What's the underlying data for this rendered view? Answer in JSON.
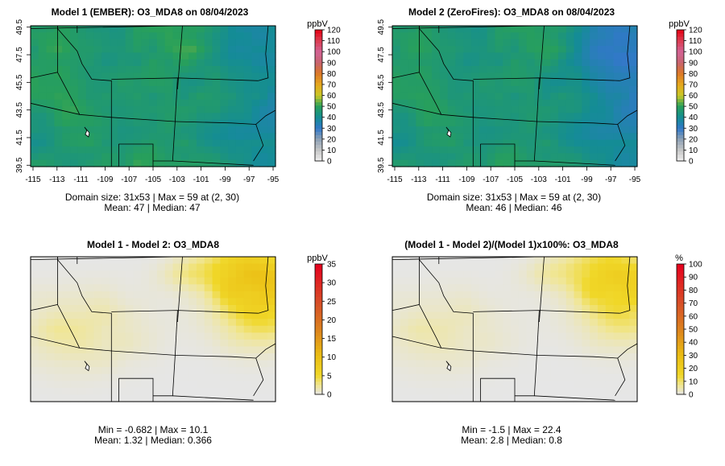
{
  "chart_data": [
    {
      "type": "heatmap",
      "title": "Model 1 (EMBER): O3_MDA8 on 08/04/2023",
      "grid": "31x53",
      "x_ticks": [
        "-115",
        "-113",
        "-111",
        "-109",
        "-107",
        "-105",
        "-103",
        "-101",
        "-99",
        "-97",
        "-95"
      ],
      "y_ticks": [
        "39.5",
        "41.5",
        "43.5",
        "45.5",
        "47.5",
        "49.5"
      ],
      "xlim": [
        -115.2,
        -94.8
      ],
      "ylim": [
        39.4,
        49.6
      ],
      "legend_title": "ppbV",
      "legend_ticks": [
        "0",
        "10",
        "20",
        "30",
        "40",
        "50",
        "60",
        "70",
        "80",
        "90",
        "100",
        "110",
        "120"
      ],
      "legend_range": [
        0,
        120
      ],
      "stats_line1": "Domain size: 31x53 | Max = 59 at (2, 30)",
      "stats_line2": "Mean: 47 |  Median: 47",
      "mean": 47,
      "max": 59
    },
    {
      "type": "heatmap",
      "title": "Model 2 (ZeroFires): O3_MDA8 on 08/04/2023",
      "grid": "31x53",
      "x_ticks": [
        "-115",
        "-113",
        "-111",
        "-109",
        "-107",
        "-105",
        "-103",
        "-101",
        "-99",
        "-97",
        "-95"
      ],
      "y_ticks": [
        "39.5",
        "41.5",
        "43.5",
        "45.5",
        "47.5",
        "49.5"
      ],
      "xlim": [
        -115.2,
        -94.8
      ],
      "ylim": [
        39.4,
        49.6
      ],
      "legend_title": "ppbV",
      "legend_ticks": [
        "0",
        "10",
        "20",
        "30",
        "40",
        "50",
        "60",
        "70",
        "80",
        "90",
        "100",
        "110",
        "120"
      ],
      "legend_range": [
        0,
        120
      ],
      "stats_line1": "Domain size: 31x53 | Max = 59 at (2, 30)",
      "stats_line2": "Mean: 46 |  Median: 46",
      "mean": 46,
      "max": 59
    },
    {
      "type": "heatmap",
      "title": "Model 1 - Model 2: O3_MDA8",
      "legend_title": "ppbV",
      "legend_ticks": [
        "0",
        "5",
        "10",
        "15",
        "20",
        "25",
        "30",
        "35"
      ],
      "legend_range": [
        0,
        35
      ],
      "stats_line1": "Min = -0.682 | Max = 10.1",
      "stats_line2": "Mean: 1.32 |  Median: 0.366",
      "min": -0.682,
      "max": 10.1
    },
    {
      "type": "heatmap",
      "title": "(Model 1 - Model 2)/(Model 1)x100%: O3_MDA8",
      "legend_title": "%",
      "legend_ticks": [
        "0",
        "10",
        "20",
        "30",
        "40",
        "50",
        "60",
        "70",
        "80",
        "90",
        "100"
      ],
      "legend_range": [
        0,
        100
      ],
      "stats_line1": "Min = -1.5 | Max = 22.4",
      "stats_line2": "Mean: 2.8 |  Median: 0.8",
      "min": -1.5,
      "max": 22.4
    }
  ]
}
